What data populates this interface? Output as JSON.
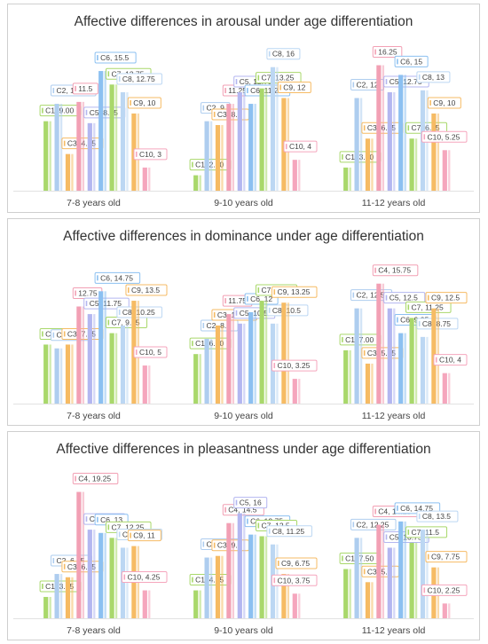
{
  "chart_data": [
    {
      "type": "bar",
      "title": "Affective differences in arousal under age differentiation",
      "categories": [
        "7-8 years old",
        "9-10 years old",
        "11-12 years old"
      ],
      "series": [
        {
          "name": "C1",
          "values": [
            9.0,
            2.0,
            3.0
          ]
        },
        {
          "name": "C2",
          "values": [
            11.25,
            9,
            12
          ]
        },
        {
          "name": "C3",
          "values": [
            4.75,
            8.5,
            6.75
          ]
        },
        {
          "name": "C4",
          "values": [
            11.5,
            11.25,
            16.25
          ]
        },
        {
          "name": "C5",
          "values": [
            8.75,
            12.75,
            12.75
          ]
        },
        {
          "name": "C6",
          "values": [
            15.5,
            11.25,
            15
          ]
        },
        {
          "name": "C7",
          "values": [
            13.75,
            13.25,
            6.75
          ]
        },
        {
          "name": "C8",
          "values": [
            12.75,
            16,
            13
          ]
        },
        {
          "name": "C9",
          "values": [
            10,
            12,
            10
          ]
        },
        {
          "name": "C10",
          "values": [
            3,
            4,
            5.25
          ]
        }
      ],
      "labels": [
        [
          "C1, 9.00",
          "C2, 11.25",
          "C3, 4.75",
          "11.5",
          "C5, 8.75",
          "C6, 15.5",
          "C7, 13.75",
          "C8, 12.75",
          "C9, 10",
          "C10, 3"
        ],
        [
          "C1, 2.00",
          "C2, 9",
          "C3, 8.5",
          "11.25",
          "C5, 12.75",
          "C6, 11.25",
          "C7, 13.25",
          "C8, 16",
          "C9, 12",
          "C10, 4"
        ],
        [
          "C1, 3.00",
          "C2, 12",
          "C3, 6.75",
          "16.25",
          "C5, 12.75",
          "C6, 15",
          "C7, 6.75",
          "C8, 13",
          "C9, 10",
          "C10, 5.25"
        ]
      ],
      "ylim": [
        0,
        17
      ]
    },
    {
      "type": "bar",
      "title": "Affective differences in dominance under age differentiation",
      "categories": [
        "7-8 years old",
        "9-10 years old",
        "11-12 years old"
      ],
      "series": [
        {
          "name": "C1",
          "values": [
            7.75,
            6.5,
            7.0
          ]
        },
        {
          "name": "C2",
          "values": [
            7.25,
            8.5,
            12.5
          ]
        },
        {
          "name": "C3",
          "values": [
            7.75,
            10.25,
            5.25
          ]
        },
        {
          "name": "C4",
          "values": [
            12.75,
            11.75,
            15.75
          ]
        },
        {
          "name": "C5",
          "values": [
            11.75,
            10.5,
            12.5
          ]
        },
        {
          "name": "C6",
          "values": [
            14.75,
            12,
            9.25
          ]
        },
        {
          "name": "C7",
          "values": [
            9.25,
            13.5,
            11.25
          ]
        },
        {
          "name": "C8",
          "values": [
            10.25,
            10.5,
            8.75
          ]
        },
        {
          "name": "C9",
          "values": [
            13.5,
            13.25,
            12.5
          ]
        },
        {
          "name": "C10",
          "values": [
            5,
            3.25,
            4
          ]
        }
      ],
      "labels": [
        [
          "C1, 7.75",
          "C2, 7.25",
          "C3, 7.75",
          "12.75",
          "C5, 11.75",
          "C6, 14.75",
          "C7, 9.25",
          "C8, 10.25",
          "C9, 13.5",
          "C10, 5"
        ],
        [
          "C1, 6.50",
          "C2, 8.5",
          "C3, 10.25",
          "11.75",
          "C5, 10.5",
          "C6, 12",
          "C7, 13.5",
          "C8, 10.5",
          "C9, 13.25",
          "C10, 3.25"
        ],
        [
          "C1, 7.00",
          "C2, 12.5",
          "C3, 5.25",
          "C4, 15.75",
          "C5, 12.5",
          "C6, 9.25",
          "C7, 11.25",
          "C8, 8.75",
          "C9, 12.5",
          "C10, 4"
        ]
      ],
      "ylim": [
        0,
        17
      ]
    },
    {
      "type": "bar",
      "title": "Affective differences in pleasantness under age differentiation",
      "categories": [
        "7-8 years old",
        "9-10 years old",
        "11-12 years old"
      ],
      "series": [
        {
          "name": "C1",
          "values": [
            3.25,
            4.25,
            7.5
          ]
        },
        {
          "name": "C2",
          "values": [
            6.75,
            9.25,
            12.25
          ]
        },
        {
          "name": "C3",
          "values": [
            6.25,
            9.5,
            5.5
          ]
        },
        {
          "name": "C4",
          "values": [
            19.25,
            14.5,
            14.25
          ]
        },
        {
          "name": "C5",
          "values": [
            13.5,
            16,
            10.75
          ]
        },
        {
          "name": "C6",
          "values": [
            13,
            12.75,
            14.75
          ]
        },
        {
          "name": "C7",
          "values": [
            12.25,
            12.5,
            11.5
          ]
        },
        {
          "name": "C8",
          "values": [
            10.75,
            11.25,
            13.5
          ]
        },
        {
          "name": "C9",
          "values": [
            11,
            6.75,
            7.75
          ]
        },
        {
          "name": "C10",
          "values": [
            4.25,
            3.75,
            2.25
          ]
        }
      ],
      "labels": [
        [
          "C1, 3.25",
          "C2, 6.75",
          "C3, 6.25",
          "C4, 19.25",
          "C5, 13.5",
          "C6, 13",
          "C7, 12.25",
          "C8, 10.75",
          "C9, 11",
          "C10, 4.25"
        ],
        [
          "C1, 4.25",
          "C2, 9.25",
          "C3, 9.5",
          "C4, 14.5",
          "C5, 16",
          "C6, 12.75",
          "C7, 12.5",
          "C8, 11.25",
          "C9, 6.75",
          "C10, 3.75"
        ],
        [
          "C1, 7.50",
          "C2, 12.25",
          "C3, 5.5",
          "C4, 14.25",
          "C5, 10.75",
          "C6, 14.75",
          "C7, 11.5",
          "C8, 13.5",
          "C9, 7.75",
          "C10, 2.25"
        ]
      ],
      "ylim": [
        0,
        20
      ]
    }
  ],
  "colors": {
    "C1": "#a9d86b",
    "C2": "#aecdef",
    "C3": "#f6bb64",
    "C4": "#f2a0b4",
    "C5": "#b3b6f0",
    "C6": "#8cc0f1",
    "C7": "#a9d86b",
    "C8": "#bcd7f3",
    "C9": "#f6bb64",
    "C10": "#f5a6bd"
  }
}
